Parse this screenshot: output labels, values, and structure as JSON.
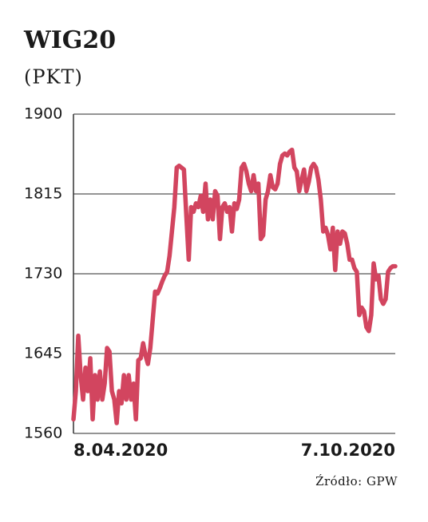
{
  "chart_data": {
    "type": "line",
    "title": "WIG20",
    "subtitle": "(PKT)",
    "source": "Źródło: GPW",
    "categories": [
      "8.04.2020",
      null,
      null,
      null,
      null,
      null,
      null,
      null,
      null,
      null,
      null,
      null,
      null,
      null,
      null,
      null,
      null,
      null,
      null,
      null,
      null,
      null,
      null,
      null,
      null,
      null,
      null,
      null,
      null,
      null,
      null,
      null,
      null,
      null,
      null,
      null,
      null,
      null,
      null,
      null,
      null,
      null,
      null,
      null,
      null,
      null,
      null,
      null,
      null,
      null,
      null,
      null,
      null,
      null,
      null,
      null,
      null,
      null,
      null,
      null,
      null,
      null,
      null,
      null,
      null,
      null,
      null,
      null,
      null,
      null,
      null,
      null,
      null,
      null,
      null,
      null,
      null,
      null,
      null,
      null,
      null,
      null,
      null,
      null,
      null,
      null,
      null,
      null,
      null,
      null,
      null,
      null,
      null,
      null,
      null,
      null,
      null,
      null,
      null,
      null,
      null,
      null,
      null,
      null,
      null,
      null,
      null,
      null,
      null,
      null,
      null,
      null,
      null,
      null,
      null,
      null,
      null,
      null,
      null,
      null,
      null,
      null,
      null,
      null,
      null,
      null,
      null,
      null,
      null,
      null,
      null,
      null,
      null,
      null,
      "7.10.2020"
    ],
    "values": [
      1575,
      1605,
      1664,
      1622,
      1596,
      1630,
      1605,
      1640,
      1575,
      1622,
      1596,
      1626,
      1596,
      1613,
      1651,
      1647,
      1605,
      1596,
      1571,
      1605,
      1592,
      1622,
      1596,
      1622,
      1596,
      1613,
      1575,
      1638,
      1640,
      1656,
      1643,
      1634,
      1651,
      1681,
      1711,
      1709,
      1715,
      1722,
      1728,
      1732,
      1749,
      1775,
      1801,
      1843,
      1845,
      1843,
      1841,
      1792,
      1745,
      1801,
      1796,
      1805,
      1801,
      1813,
      1796,
      1826,
      1788,
      1809,
      1788,
      1818,
      1813,
      1767,
      1801,
      1805,
      1796,
      1801,
      1775,
      1805,
      1799,
      1809,
      1843,
      1847,
      1839,
      1826,
      1818,
      1835,
      1818,
      1826,
      1767,
      1771,
      1809,
      1818,
      1835,
      1822,
      1820,
      1826,
      1847,
      1856,
      1858,
      1856,
      1860,
      1862,
      1843,
      1839,
      1818,
      1830,
      1841,
      1818,
      1828,
      1843,
      1847,
      1843,
      1830,
      1809,
      1775,
      1779,
      1771,
      1756,
      1779,
      1734,
      1775,
      1762,
      1775,
      1773,
      1762,
      1745,
      1745,
      1736,
      1732,
      1686,
      1694,
      1690,
      1673,
      1669,
      1686,
      1741,
      1724,
      1728,
      1703,
      1698,
      1703,
      1732,
      1736,
      1738,
      1738
    ],
    "color": "#d2455f",
    "ylim": [
      1560,
      1900
    ],
    "yticks": [
      1560,
      1645,
      1730,
      1815,
      1900
    ],
    "grid": true
  }
}
